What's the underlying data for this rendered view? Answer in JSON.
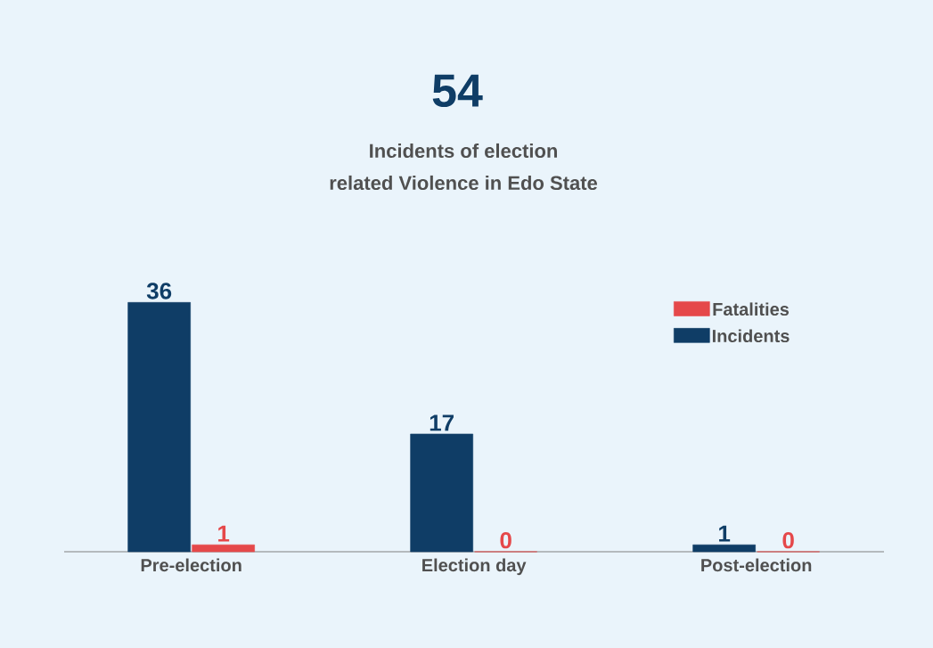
{
  "chart_data": {
    "type": "bar",
    "title": "54",
    "subtitle": "Incidents of election\nrelated Violence in Edo State",
    "categories": [
      "Pre-election",
      "Election day",
      "Post-election"
    ],
    "series": [
      {
        "name": "Incidents",
        "color": "#0f3d66",
        "values": [
          36,
          17,
          1
        ]
      },
      {
        "name": "Fatalities",
        "color": "#e5484a",
        "values": [
          1,
          0,
          0
        ]
      }
    ],
    "data_labels": true,
    "legend": "top right"
  }
}
